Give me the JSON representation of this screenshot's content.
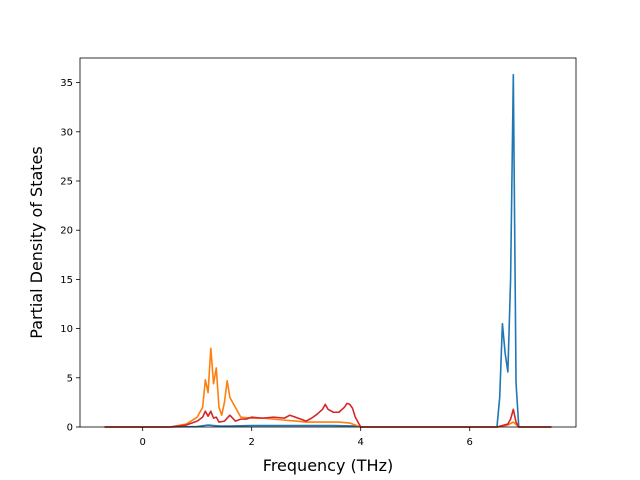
{
  "chart_data": {
    "type": "line",
    "title": "",
    "xlabel": "Frequency (THz)",
    "ylabel": "Partial Density of States",
    "xlim": [
      -1.15,
      7.95
    ],
    "ylim": [
      0,
      37.5
    ],
    "xticks": [
      0,
      2,
      4,
      6
    ],
    "yticks": [
      0,
      5,
      10,
      15,
      20,
      25,
      30,
      35
    ],
    "grid": false,
    "legend": "none",
    "series": [
      {
        "color": "#1f77b4",
        "x": [
          -0.7,
          0.5,
          1.0,
          1.2,
          1.4,
          1.6,
          2.0,
          2.5,
          3.0,
          3.5,
          3.9,
          4.0,
          6.0,
          6.5,
          6.55,
          6.6,
          6.65,
          6.7,
          6.75,
          6.8,
          6.85,
          6.9,
          7.5
        ],
        "y": [
          0,
          0,
          0.05,
          0.2,
          0.1,
          0.1,
          0.15,
          0.15,
          0.15,
          0.15,
          0.1,
          0,
          0,
          0,
          3.0,
          10.5,
          7.5,
          5.6,
          15.0,
          35.8,
          4.5,
          0,
          0
        ]
      },
      {
        "color": "#ff7f0e",
        "x": [
          -0.7,
          0.5,
          0.8,
          1.0,
          1.1,
          1.15,
          1.2,
          1.25,
          1.3,
          1.35,
          1.4,
          1.45,
          1.5,
          1.55,
          1.6,
          1.7,
          1.8,
          2.0,
          2.2,
          2.4,
          2.6,
          2.8,
          3.0,
          3.2,
          3.4,
          3.6,
          3.8,
          3.9,
          4.0,
          6.5,
          6.7,
          6.8,
          6.9,
          7.5
        ],
        "y": [
          0,
          0,
          0.3,
          1.0,
          2.0,
          4.8,
          3.5,
          8.0,
          4.4,
          6.0,
          2.0,
          1.2,
          2.5,
          4.7,
          3.0,
          2.0,
          1.0,
          0.9,
          0.9,
          0.8,
          0.7,
          0.6,
          0.5,
          0.5,
          0.5,
          0.5,
          0.4,
          0.2,
          0,
          0,
          0.2,
          0.5,
          0,
          0
        ]
      },
      {
        "color": "#d62728",
        "x": [
          -0.7,
          0.5,
          0.8,
          1.0,
          1.1,
          1.15,
          1.2,
          1.25,
          1.3,
          1.35,
          1.4,
          1.5,
          1.6,
          1.7,
          1.8,
          1.9,
          2.0,
          2.2,
          2.4,
          2.6,
          2.7,
          2.8,
          2.9,
          3.0,
          3.1,
          3.2,
          3.3,
          3.35,
          3.4,
          3.5,
          3.6,
          3.7,
          3.75,
          3.8,
          3.85,
          3.9,
          4.0,
          6.5,
          6.7,
          6.75,
          6.8,
          6.85,
          6.9,
          7.5
        ],
        "y": [
          0,
          0,
          0.2,
          0.6,
          1.0,
          1.6,
          1.1,
          1.6,
          0.9,
          1.0,
          0.5,
          0.6,
          1.2,
          0.6,
          0.8,
          0.8,
          1.0,
          0.9,
          1.0,
          0.9,
          1.2,
          1.0,
          0.8,
          0.6,
          0.9,
          1.3,
          1.8,
          2.3,
          1.8,
          1.5,
          1.5,
          2.0,
          2.4,
          2.3,
          1.9,
          1.0,
          0,
          0,
          0.3,
          0.8,
          1.8,
          0.5,
          0,
          0
        ]
      }
    ]
  }
}
